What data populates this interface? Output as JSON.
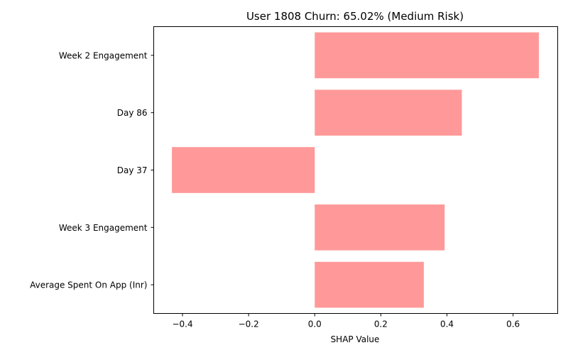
{
  "chart_data": {
    "type": "bar",
    "orientation": "horizontal",
    "title": "User 1808 Churn: 65.02% (Medium Risk)",
    "xlabel": "SHAP Value",
    "ylabel": "",
    "categories": [
      "Week 2 Engagement",
      "Day 86",
      "Day 37",
      "Week 3 Engagement",
      "Average Spent On App (Inr)"
    ],
    "values": [
      0.678,
      0.445,
      -0.432,
      0.393,
      0.33
    ],
    "xlim": [
      -0.487,
      0.735
    ],
    "xticks": [
      -0.4,
      -0.2,
      0.0,
      0.2,
      0.4,
      0.6
    ],
    "xtick_labels": [
      "−0.4",
      "−0.2",
      "0.0",
      "0.2",
      "0.4",
      "0.6"
    ],
    "bar_color": "#ff9999",
    "grid": false,
    "legend": "none"
  }
}
